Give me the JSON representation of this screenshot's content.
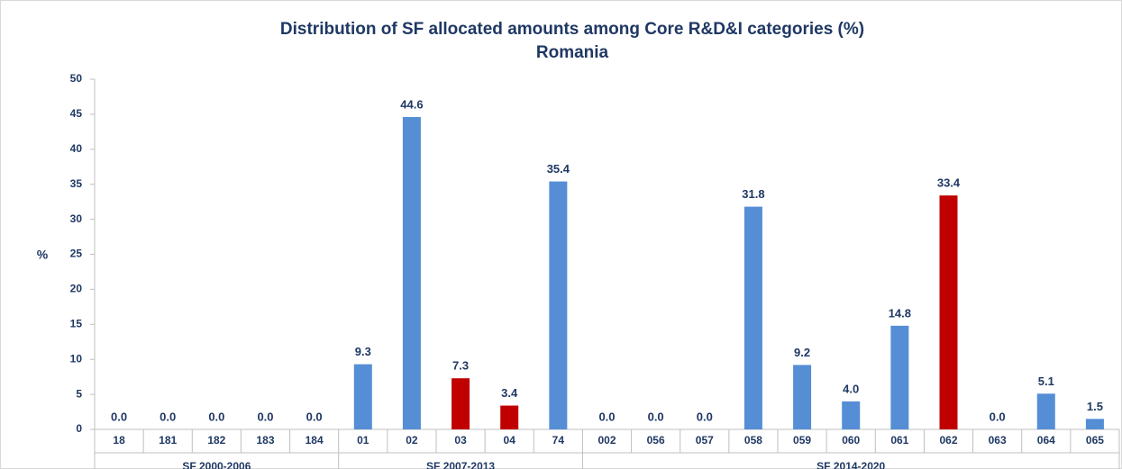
{
  "chart_data": {
    "type": "bar",
    "title": "Distribution of SF allocated amounts among Core R&D&I categories (%)",
    "subtitle": "Romania",
    "y_label": "%",
    "ylim": [
      0,
      50
    ],
    "yticks": [
      0,
      5,
      10,
      15,
      20,
      25,
      30,
      35,
      40,
      45,
      50
    ],
    "grid": false,
    "groups": [
      {
        "name": "SF 2000-2006",
        "categories": [
          "18",
          "181",
          "182",
          "183",
          "184"
        ],
        "values": [
          0,
          0,
          0,
          0,
          0
        ],
        "value_labels": [
          "0.0",
          "0.0",
          "0.0",
          "0.0",
          "0.0"
        ],
        "colors": [
          "#558ed5",
          "#558ed5",
          "#558ed5",
          "#558ed5",
          "#558ed5"
        ]
      },
      {
        "name": "SF 2007-2013",
        "categories": [
          "01",
          "02",
          "03",
          "04",
          "74"
        ],
        "values": [
          9.3,
          44.6,
          7.3,
          3.4,
          35.4
        ],
        "value_labels": [
          "9.3",
          "44.6",
          "7.3",
          "3.4",
          "35.4"
        ],
        "colors": [
          "#558ed5",
          "#558ed5",
          "#c00000",
          "#c00000",
          "#558ed5"
        ]
      },
      {
        "name": "SF 2014-2020",
        "categories": [
          "002",
          "056",
          "057",
          "058",
          "059",
          "060",
          "061",
          "062",
          "063",
          "064",
          "065"
        ],
        "values": [
          0,
          0,
          0,
          31.8,
          9.2,
          4.0,
          14.8,
          33.4,
          0,
          5.1,
          1.5
        ],
        "value_labels": [
          "0.0",
          "0.0",
          "0.0",
          "31.8",
          "9.2",
          "4.0",
          "14.8",
          "33.4",
          "0.0",
          "5.1",
          "1.5"
        ],
        "colors": [
          "#558ed5",
          "#558ed5",
          "#558ed5",
          "#558ed5",
          "#558ed5",
          "#558ed5",
          "#558ed5",
          "#c00000",
          "#558ed5",
          "#558ed5",
          "#558ed5"
        ]
      }
    ]
  }
}
